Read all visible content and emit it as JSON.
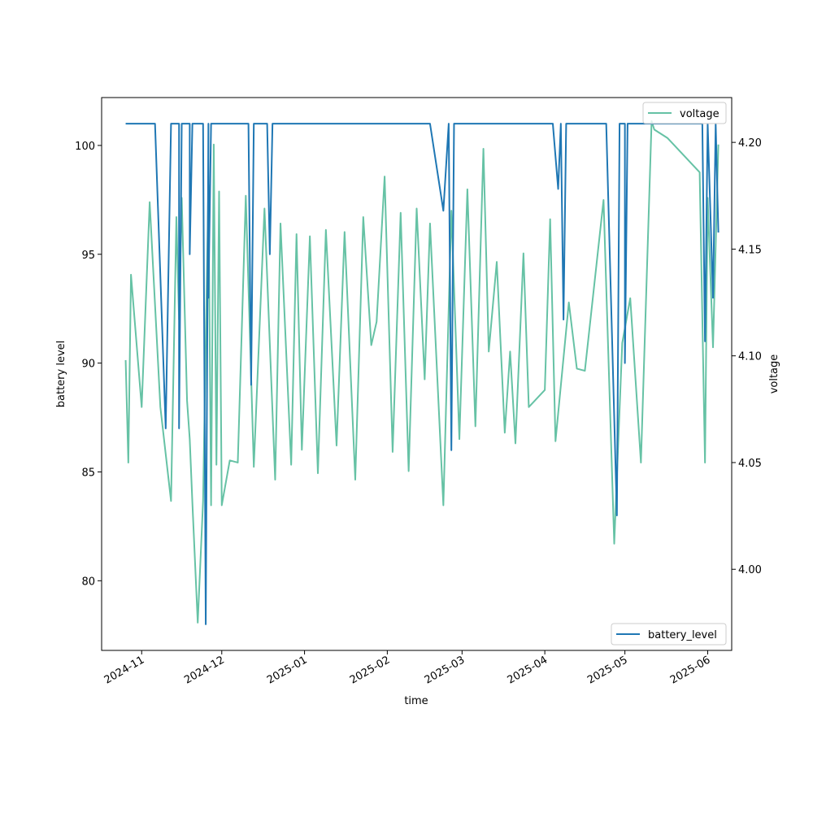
{
  "chart_data": {
    "type": "line",
    "xlabel": "time",
    "ylabel_left": "battery level",
    "ylabel_right": "voltage",
    "x_ticks": [
      "2024-11",
      "2024-12",
      "2025-01",
      "2025-02",
      "2025-03",
      "2025-04",
      "2025-05",
      "2025-06"
    ],
    "x_range": [
      "2024-10-17",
      "2025-06-10"
    ],
    "y_left_ticks": [
      80,
      85,
      90,
      95,
      100
    ],
    "y_left_range": [
      76.8,
      102.2
    ],
    "y_right_ticks": [
      "4.00",
      "4.05",
      "4.10",
      "4.15",
      "4.20"
    ],
    "y_right_range": [
      3.962,
      4.221
    ],
    "grid": false,
    "legends": [
      {
        "axis": "right",
        "placement": "upper right",
        "series": "voltage"
      },
      {
        "axis": "left",
        "placement": "lower right",
        "series": "battery_level"
      }
    ],
    "colors": {
      "battery_level": "#1f77b4",
      "voltage": "#66c2a5"
    },
    "series": [
      {
        "name": "battery_level",
        "axis": "left",
        "x": [
          "2024-10-26",
          "2024-11-06",
          "2024-11-10",
          "2024-11-12",
          "2024-11-15",
          "2024-11-15",
          "2024-11-16",
          "2024-11-19",
          "2024-11-19",
          "2024-11-20",
          "2024-11-24",
          "2024-11-25",
          "2024-11-26",
          "2024-11-26",
          "2024-11-27",
          "2024-11-27",
          "2024-11-28",
          "2024-11-28",
          "2024-12-11",
          "2024-12-12",
          "2024-12-13",
          "2024-12-18",
          "2024-12-19",
          "2024-12-20",
          "2025-02-17",
          "2025-02-22",
          "2025-02-24",
          "2025-02-25",
          "2025-02-26",
          "2025-04-04",
          "2025-04-06",
          "2025-04-07",
          "2025-04-08",
          "2025-04-09",
          "2025-04-24",
          "2025-04-28",
          "2025-04-29",
          "2025-05-01",
          "2025-05-01",
          "2025-05-02",
          "2025-05-05",
          "2025-05-30",
          "2025-05-31",
          "2025-06-01",
          "2025-06-03",
          "2025-06-04",
          "2025-06-05"
        ],
        "y": [
          101,
          101,
          87,
          101,
          101,
          87,
          101,
          101,
          95,
          101,
          101,
          78,
          101,
          93,
          101,
          101,
          101,
          101,
          101,
          89,
          101,
          101,
          95,
          101,
          101,
          97,
          101,
          86,
          101,
          101,
          98,
          101,
          92,
          101,
          101,
          83,
          101,
          101,
          90,
          101,
          101,
          101,
          91,
          101,
          93,
          101,
          96
        ]
      },
      {
        "name": "voltage",
        "axis": "right",
        "x": [
          "2024-10-26",
          "2024-10-27",
          "2024-10-28",
          "2024-11-01",
          "2024-11-04",
          "2024-11-08",
          "2024-11-12",
          "2024-11-14",
          "2024-11-15",
          "2024-11-16",
          "2024-11-18",
          "2024-11-19",
          "2024-11-20",
          "2024-11-22",
          "2024-11-24",
          "2024-11-26",
          "2024-11-27",
          "2024-11-28",
          "2024-11-29",
          "2024-11-30",
          "2024-12-01",
          "2024-12-04",
          "2024-12-07",
          "2024-12-10",
          "2024-12-13",
          "2024-12-17",
          "2024-12-21",
          "2024-12-23",
          "2024-12-27",
          "2024-12-29",
          "2024-12-31",
          "2025-01-03",
          "2025-01-06",
          "2025-01-09",
          "2025-01-13",
          "2025-01-16",
          "2025-01-20",
          "2025-01-23",
          "2025-01-26",
          "2025-01-28",
          "2025-01-31",
          "2025-02-03",
          "2025-02-06",
          "2025-02-09",
          "2025-02-12",
          "2025-02-15",
          "2025-02-17",
          "2025-02-22",
          "2025-02-25",
          "2025-02-28",
          "2025-03-03",
          "2025-03-06",
          "2025-03-09",
          "2025-03-11",
          "2025-03-14",
          "2025-03-17",
          "2025-03-19",
          "2025-03-21",
          "2025-03-24",
          "2025-03-26",
          "2025-04-01",
          "2025-04-03",
          "2025-04-05",
          "2025-04-10",
          "2025-04-13",
          "2025-04-16",
          "2025-04-23",
          "2025-04-27",
          "2025-04-30",
          "2025-05-03",
          "2025-05-07",
          "2025-05-11",
          "2025-05-12",
          "2025-05-17",
          "2025-05-29",
          "2025-05-31",
          "2025-06-01",
          "2025-06-03",
          "2025-06-05"
        ],
        "y": [
          4.098,
          4.05,
          4.138,
          4.076,
          4.172,
          4.076,
          4.032,
          4.165,
          4.117,
          4.174,
          4.079,
          4.061,
          4.031,
          3.975,
          4.032,
          4.18,
          4.03,
          4.199,
          4.049,
          4.177,
          4.03,
          4.051,
          4.05,
          4.175,
          4.048,
          4.169,
          4.042,
          4.162,
          4.049,
          4.157,
          4.056,
          4.156,
          4.045,
          4.159,
          4.058,
          4.158,
          4.042,
          4.165,
          4.105,
          4.116,
          4.184,
          4.055,
          4.167,
          4.046,
          4.169,
          4.089,
          4.162,
          4.03,
          4.168,
          4.061,
          4.178,
          4.067,
          4.197,
          4.102,
          4.144,
          4.064,
          4.102,
          4.059,
          4.148,
          4.076,
          4.084,
          4.164,
          4.06,
          4.125,
          4.094,
          4.093,
          4.173,
          4.012,
          4.106,
          4.127,
          4.05,
          4.21,
          4.206,
          4.202,
          4.186,
          4.05,
          4.174,
          4.104,
          4.199
        ]
      }
    ]
  }
}
